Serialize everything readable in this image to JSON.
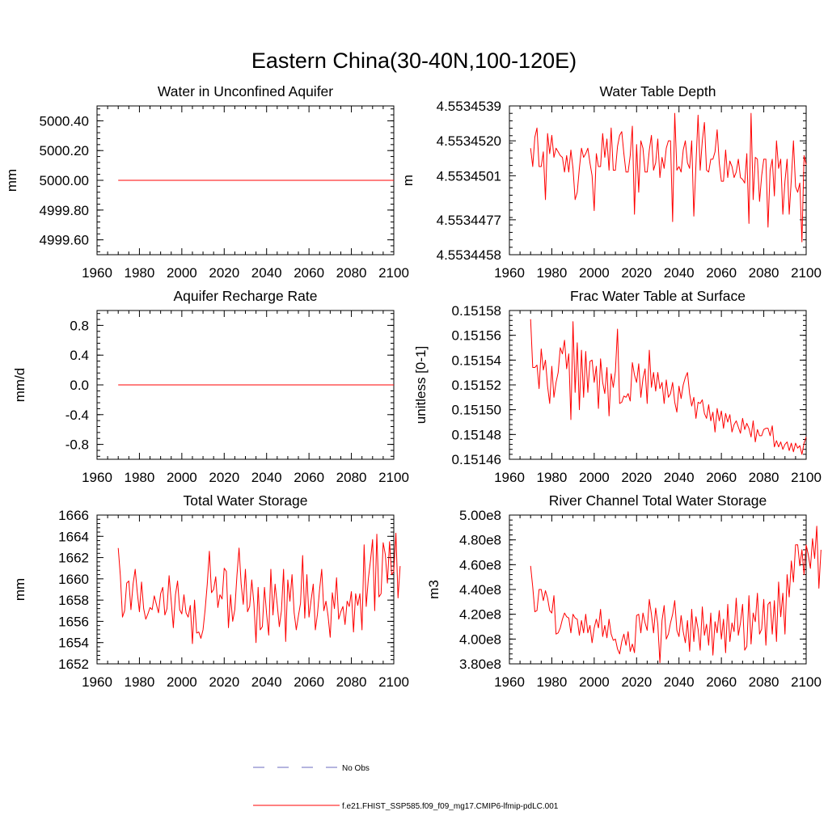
{
  "suptitle": "Eastern China(30-40N,100-120E)",
  "colors": {
    "model": "#ff0000",
    "obs": "#6b6bbf",
    "axis": "#000000"
  },
  "legend": {
    "obs_label": "No Obs",
    "model_label": "f.e21.FHIST_SSP585.f09_f09_mg17.CMIP6-lfmip-pdLC.001"
  },
  "chart_data": [
    {
      "type": "line",
      "title": "Water in Unconfined Aquifer",
      "xlabel": "",
      "ylabel": "mm",
      "xlim": [
        1960,
        2100
      ],
      "ylim": [
        4999.5,
        5000.5
      ],
      "x_ticks": [
        "1960",
        "1980",
        "2000",
        "2020",
        "2040",
        "2060",
        "2080",
        "2100"
      ],
      "y_ticks": [
        {
          "v": 4999.6,
          "label": "4999.60"
        },
        {
          "v": 4999.8,
          "label": "4999.80"
        },
        {
          "v": 5000.0,
          "label": "5000.00"
        },
        {
          "v": 5000.2,
          "label": "5000.20"
        },
        {
          "v": 5000.4,
          "label": "5000.40"
        }
      ],
      "series": [
        {
          "name": "f.e21.FHIST_SSP585.f09_f09_mg17.CMIP6-lfmip-pdLC.001",
          "x_start": 1970,
          "x_end": 2100,
          "constant": 5000.0
        }
      ]
    },
    {
      "type": "line",
      "title": "Water Table Depth",
      "xlabel": "",
      "ylabel": "m",
      "xlim": [
        1960,
        2100
      ],
      "ylim": [
        4.5534458,
        4.5534539
      ],
      "x_ticks": [
        "1960",
        "1980",
        "2000",
        "2020",
        "2040",
        "2060",
        "2080",
        "2100"
      ],
      "y_ticks": [
        {
          "v": 4.5534458,
          "label": "4.5534458"
        },
        {
          "v": 4.5534477,
          "label": "4.5534477"
        },
        {
          "v": 4.5534501,
          "label": "4.5534501"
        },
        {
          "v": 4.553452,
          "label": "4.5534520"
        },
        {
          "v": 4.5534539,
          "label": "4.5534539"
        }
      ],
      "series": [
        {
          "name": "f.e21.FHIST_SSP585.f09_f09_mg17.CMIP6-lfmip-pdLC.001",
          "x_start": 1970,
          "values": [
            4.5534516,
            4.5534506,
            4.5534522,
            4.5534527,
            4.5534506,
            4.5534506,
            4.5534514,
            4.5534488,
            4.5534524,
            4.5534513,
            4.5534523,
            4.5534511,
            4.5534516,
            4.5534514,
            4.5534512,
            4.5534511,
            4.5534503,
            4.5534512,
            4.5534503,
            4.5534515,
            4.5534505,
            4.5534488,
            4.5534492,
            4.5534505,
            4.5534516,
            4.5534511,
            4.5534513,
            4.5534516,
            4.5534508,
            4.5534501,
            4.5534482,
            4.5534513,
            4.5534506,
            4.5534506,
            4.5534524,
            4.5534511,
            4.5534521,
            4.5534504,
            4.5534527,
            4.5534504,
            4.5534504,
            4.5534517,
            4.5534523,
            4.5534525,
            4.5534513,
            4.5534503,
            4.5534503,
            4.5534512,
            4.5534528,
            4.553448,
            4.5534518,
            4.5534492,
            4.553452,
            4.5534516,
            4.5534503,
            4.5534503,
            4.5534515,
            4.5534523,
            4.5534504,
            4.5534508,
            4.5534521,
            4.55345,
            4.5534511,
            4.5534505,
            4.5534516,
            4.553452,
            4.553452,
            4.5534476,
            4.5534535,
            4.5534504,
            4.5534506,
            4.5534503,
            4.5534515,
            4.553452,
            4.5534508,
            4.5534505,
            4.553452,
            4.5534479,
            4.5534507,
            4.5534534,
            4.5534504,
            4.553452,
            4.553453,
            4.5534504,
            4.5534503,
            4.553451,
            4.553451,
            4.5534514,
            4.5534526,
            4.5534508,
            4.5534498,
            4.5534498,
            4.5534515,
            4.55345,
            4.5534509,
            4.5534506,
            4.55345,
            4.5534503,
            4.553451,
            4.55345,
            4.5534499,
            4.5534497,
            4.5534513,
            4.5534475,
            4.5534535,
            4.5534488,
            4.5534511,
            4.553451,
            4.5534487,
            4.5534501,
            4.553451,
            4.553451,
            4.5534473,
            4.5534504,
            4.553451,
            4.553449,
            4.553452,
            4.5534505,
            4.553451,
            4.553448,
            4.5534498,
            4.553451,
            4.553448,
            4.5534499,
            4.553452,
            4.5534495,
            4.5534492,
            4.5534497,
            4.5534465,
            4.5534512,
            4.5534507
          ]
        }
      ]
    },
    {
      "type": "line",
      "title": "Aquifer Recharge Rate",
      "xlabel": "",
      "ylabel": "mm/d",
      "xlim": [
        1960,
        2100
      ],
      "ylim": [
        -1.0,
        1.0
      ],
      "x_ticks": [
        "1960",
        "1980",
        "2000",
        "2020",
        "2040",
        "2060",
        "2080",
        "2100"
      ],
      "y_ticks": [
        {
          "v": -0.8,
          "label": "-0.8"
        },
        {
          "v": -0.4,
          "label": "-0.4"
        },
        {
          "v": 0.0,
          "label": "0.0"
        },
        {
          "v": 0.4,
          "label": "0.4"
        },
        {
          "v": 0.8,
          "label": "0.8"
        }
      ],
      "series": [
        {
          "name": "f.e21.FHIST_SSP585.f09_f09_mg17.CMIP6-lfmip-pdLC.001",
          "x_start": 1970,
          "x_end": 2100,
          "constant": 0.0
        }
      ]
    },
    {
      "type": "line",
      "title": "Frac Water Table at Surface",
      "xlabel": "",
      "ylabel": "unitless [0-1]",
      "xlim": [
        1960,
        2100
      ],
      "ylim": [
        0.15146,
        0.15158
      ],
      "x_ticks": [
        "1960",
        "1980",
        "2000",
        "2020",
        "2040",
        "2060",
        "2080",
        "2100"
      ],
      "y_ticks": [
        {
          "v": 0.15146,
          "label": "0.15146"
        },
        {
          "v": 0.15148,
          "label": "0.15148"
        },
        {
          "v": 0.1515,
          "label": "0.15150"
        },
        {
          "v": 0.15152,
          "label": "0.15152"
        },
        {
          "v": 0.15154,
          "label": "0.15154"
        },
        {
          "v": 0.15156,
          "label": "0.15156"
        },
        {
          "v": 0.15158,
          "label": "0.15158"
        }
      ],
      "series": [
        {
          "name": "f.e21.FHIST_SSP585.f09_f09_mg17.CMIP6-lfmip-pdLC.001",
          "x_start": 1970,
          "values": [
            0.151573,
            0.151534,
            0.151534,
            0.151536,
            0.151517,
            0.151549,
            0.151532,
            0.15154,
            0.151519,
            0.151505,
            0.151535,
            0.15151,
            0.151522,
            0.15153,
            0.15155,
            0.151545,
            0.151556,
            0.151533,
            0.151545,
            0.151492,
            0.151571,
            0.151514,
            0.151554,
            0.1515,
            0.151548,
            0.15151,
            0.151547,
            0.151514,
            0.151539,
            0.15154,
            0.151522,
            0.151535,
            0.151501,
            0.151541,
            0.151522,
            0.151513,
            0.151534,
            0.151495,
            0.151529,
            0.151518,
            0.151531,
            0.151565,
            0.151505,
            0.151506,
            0.151511,
            0.15151,
            0.151513,
            0.151507,
            0.151538,
            0.151528,
            0.151522,
            0.151537,
            0.15151,
            0.151525,
            0.151533,
            0.151505,
            0.151548,
            0.151518,
            0.15153,
            0.151515,
            0.15153,
            0.151517,
            0.151522,
            0.151505,
            0.151524,
            0.15151,
            0.151513,
            0.151522,
            0.151506,
            0.151498,
            0.151519,
            0.151509,
            0.15152,
            0.151526,
            0.15153,
            0.151513,
            0.151503,
            0.15151,
            0.151493,
            0.151506,
            0.151505,
            0.151508,
            0.151497,
            0.151493,
            0.151504,
            0.151491,
            0.151498,
            0.151482,
            0.151501,
            0.151491,
            0.151499,
            0.151485,
            0.151497,
            0.15149,
            0.151496,
            0.151482,
            0.151488,
            0.151491,
            0.151486,
            0.151481,
            0.151493,
            0.151484,
            0.151489,
            0.151485,
            0.151478,
            0.151491,
            0.151474,
            0.151484,
            0.151479,
            0.151479,
            0.151484,
            0.151485,
            0.151485,
            0.151479,
            0.151487,
            0.15147,
            0.151475,
            0.15147,
            0.151474,
            0.151468,
            0.151472,
            0.151474,
            0.151467,
            0.151473,
            0.151466,
            0.151473,
            0.151469,
            0.151471,
            0.151464,
            0.151473,
            0.151478
          ]
        }
      ]
    },
    {
      "type": "line",
      "title": "Total Water Storage",
      "xlabel": "",
      "ylabel": "mm",
      "xlim": [
        1960,
        2100
      ],
      "ylim": [
        1652,
        1666
      ],
      "x_ticks": [
        "1960",
        "1980",
        "2000",
        "2020",
        "2040",
        "2060",
        "2080",
        "2100"
      ],
      "y_ticks": [
        {
          "v": 1652,
          "label": "1652"
        },
        {
          "v": 1654,
          "label": "1654"
        },
        {
          "v": 1656,
          "label": "1656"
        },
        {
          "v": 1658,
          "label": "1658"
        },
        {
          "v": 1660,
          "label": "1660"
        },
        {
          "v": 1662,
          "label": "1662"
        },
        {
          "v": 1664,
          "label": "1664"
        },
        {
          "v": 1666,
          "label": "1666"
        }
      ],
      "series": [
        {
          "name": "f.e21.FHIST_SSP585.f09_f09_mg17.CMIP6-lfmip-pdLC.001",
          "x_start": 1970,
          "values": [
            1662.9,
            1660.3,
            1656.4,
            1657.0,
            1659.6,
            1659.8,
            1657.1,
            1659.5,
            1660.9,
            1658.7,
            1656.9,
            1659.7,
            1657.2,
            1656.2,
            1656.7,
            1657.3,
            1657.1,
            1658.4,
            1657.6,
            1656.8,
            1658.6,
            1659.2,
            1656.6,
            1657.2,
            1660.3,
            1657.9,
            1655.4,
            1658.5,
            1659.8,
            1657.1,
            1656.7,
            1658.5,
            1656.8,
            1656.4,
            1657.5,
            1653.9,
            1658.0,
            1654.9,
            1655.0,
            1654.4,
            1655.2,
            1657.1,
            1659.5,
            1662.6,
            1658.7,
            1659.0,
            1660.2,
            1657.3,
            1658.5,
            1658.1,
            1661.0,
            1660.7,
            1655.4,
            1658.5,
            1656.0,
            1657.1,
            1660.3,
            1662.9,
            1659.5,
            1657.6,
            1660.9,
            1656.9,
            1657.4,
            1659.9,
            1657.7,
            1654.0,
            1659.2,
            1655.2,
            1655.5,
            1659.2,
            1656.7,
            1654.7,
            1660.9,
            1656.6,
            1659.5,
            1657.6,
            1655.5,
            1657.0,
            1660.9,
            1654.1,
            1659.9,
            1657.9,
            1660.4,
            1656.8,
            1655.2,
            1656.5,
            1657.7,
            1662.2,
            1656.3,
            1660.4,
            1656.4,
            1658.0,
            1659.5,
            1655.2,
            1656.7,
            1659.0,
            1660.9,
            1657.0,
            1657.9,
            1656.5,
            1654.5,
            1658.7,
            1657.2,
            1660.1,
            1656.2,
            1656.9,
            1657.4,
            1655.7,
            1657.9,
            1657.4,
            1658.8,
            1655.0,
            1658.6,
            1657.5,
            1658.6,
            1655.2,
            1663.2,
            1657.4,
            1660.0,
            1661.7,
            1663.7,
            1657.0,
            1664.2,
            1658.3,
            1658.6,
            1663.4,
            1662.3,
            1659.6,
            1663.5,
            1660.4,
            1660.7,
            1664.3,
            1658.2,
            1661.2
          ]
        }
      ]
    },
    {
      "type": "line",
      "title": "River Channel Total Water Storage",
      "xlabel": "",
      "ylabel": "m3",
      "xlim": [
        1960,
        2100
      ],
      "ylim": [
        380000000,
        500000000
      ],
      "x_ticks": [
        "1960",
        "1980",
        "2000",
        "2020",
        "2040",
        "2060",
        "2080",
        "2100"
      ],
      "y_ticks": [
        {
          "v": 380000000,
          "label": "3.80e8"
        },
        {
          "v": 400000000,
          "label": "4.00e8"
        },
        {
          "v": 420000000,
          "label": "4.20e8"
        },
        {
          "v": 440000000,
          "label": "4.40e8"
        },
        {
          "v": 460000000,
          "label": "4.60e8"
        },
        {
          "v": 480000000,
          "label": "4.80e8"
        },
        {
          "v": 500000000,
          "label": "5.00e8"
        }
      ],
      "series": [
        {
          "name": "f.e21.FHIST_SSP585.f09_f09_mg17.CMIP6-lfmip-pdLC.001",
          "x_start": 1970,
          "values": [
            459000000,
            442000000,
            422000000,
            423000000,
            440000000,
            440000000,
            431000000,
            439000000,
            433000000,
            423000000,
            421000000,
            435000000,
            404000000,
            405000000,
            409000000,
            416000000,
            421000000,
            418000000,
            417000000,
            405000000,
            420000000,
            417000000,
            416000000,
            403000000,
            415000000,
            405000000,
            420000000,
            405000000,
            411000000,
            397000000,
            409000000,
            416000000,
            409000000,
            424000000,
            402000000,
            411000000,
            401000000,
            416000000,
            404000000,
            399000000,
            400000000,
            392000000,
            388000000,
            398000000,
            404000000,
            395000000,
            406000000,
            390000000,
            396000000,
            389000000,
            419000000,
            420000000,
            405000000,
            421000000,
            413000000,
            407000000,
            432000000,
            420000000,
            405000000,
            425000000,
            412000000,
            381000000,
            415000000,
            427000000,
            400000000,
            404000000,
            413000000,
            420000000,
            431000000,
            407000000,
            402000000,
            419000000,
            406000000,
            397000000,
            415000000,
            390000000,
            424000000,
            398000000,
            418000000,
            408000000,
            391000000,
            426000000,
            403000000,
            412000000,
            395000000,
            421000000,
            387000000,
            414000000,
            405000000,
            423000000,
            400000000,
            416000000,
            389000000,
            428000000,
            398000000,
            413000000,
            406000000,
            433000000,
            403000000,
            413000000,
            428000000,
            391000000,
            394000000,
            435000000,
            396000000,
            421000000,
            414000000,
            437000000,
            404000000,
            408000000,
            432000000,
            395000000,
            428000000,
            430000000,
            404000000,
            431000000,
            398000000,
            446000000,
            418000000,
            437000000,
            404000000,
            452000000,
            434000000,
            463000000,
            446000000,
            476000000,
            476000000,
            459000000,
            472000000,
            452000000,
            476000000,
            468000000,
            457000000,
            481000000,
            465000000,
            491000000,
            441000000,
            472000000
          ]
        }
      ]
    }
  ]
}
